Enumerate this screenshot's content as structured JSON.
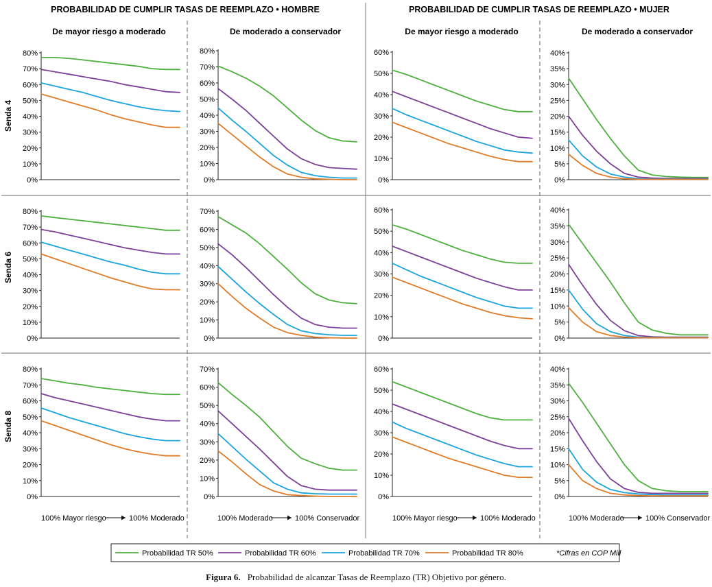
{
  "headers": {
    "hombre": "PROBABILIDAD DE CUMPLIR TASAS DE REEMPLAZO • HOMBRE",
    "mujer": "PROBABILIDAD DE CUMPLIR TASAS DE REEMPLAZO • MUJER"
  },
  "subheaders": {
    "mayor": "De mayor riesgo a moderado",
    "moderado": "De moderado a conservador"
  },
  "rows": [
    "Senda 4",
    "Senda 6",
    "Senda 8"
  ],
  "x_caps": {
    "mayor": {
      "left": "100% Mayor riesgo",
      "right": "100% Moderado"
    },
    "moderado": {
      "left": "100% Moderado",
      "right": "100% Conservador"
    }
  },
  "legend": {
    "items": [
      {
        "label": "Probabilidad TR 50%",
        "color": "#4daf3e"
      },
      {
        "label": "Probabilidad TR 60%",
        "color": "#7b3f98"
      },
      {
        "label": "Probabilidad TR 70%",
        "color": "#1aa3dc"
      },
      {
        "label": "Probabilidad TR 80%",
        "color": "#e07b27"
      }
    ],
    "note": "*Cifras en COP Mill"
  },
  "caption": {
    "label": "Figura 6.",
    "text": "Probabilidad de alcanzar Tasas de Reemplazo (TR) Objetivo por género."
  },
  "chart_data": [
    {
      "id": "h-s4-mayor",
      "type": "line",
      "ylim": [
        0,
        80
      ],
      "yticks": [
        0,
        10,
        20,
        30,
        40,
        50,
        60,
        70,
        80
      ],
      "x": [
        0,
        1,
        2,
        3,
        4,
        5,
        6,
        7,
        8,
        9,
        10
      ],
      "series": [
        {
          "name": "Probabilidad TR 50%",
          "values": [
            77,
            77,
            76.5,
            75.5,
            74.5,
            73.5,
            72.5,
            71.5,
            70,
            69.5,
            69.5
          ]
        },
        {
          "name": "Probabilidad TR 60%",
          "values": [
            69.5,
            68,
            66.5,
            65,
            63.5,
            62,
            60,
            58.5,
            57,
            55.5,
            55
          ]
        },
        {
          "name": "Probabilidad TR 70%",
          "values": [
            61,
            59,
            57,
            55,
            52.5,
            50,
            48,
            46,
            44.5,
            43.5,
            43
          ]
        },
        {
          "name": "Probabilidad TR 80%",
          "values": [
            54,
            51.5,
            49,
            46.5,
            44,
            41,
            38.5,
            36.5,
            34.5,
            33,
            33
          ]
        }
      ]
    },
    {
      "id": "h-s4-moderado",
      "type": "line",
      "ylim": [
        0,
        80
      ],
      "yticks": [
        0,
        10,
        20,
        30,
        40,
        50,
        60,
        70,
        80
      ],
      "x": [
        0,
        1,
        2,
        3,
        4,
        5,
        6,
        7,
        8,
        9,
        10
      ],
      "series": [
        {
          "name": "Probabilidad TR 50%",
          "values": [
            70.5,
            67,
            63,
            58,
            52,
            44.5,
            37,
            30.5,
            26,
            24,
            23.5
          ]
        },
        {
          "name": "Probabilidad TR 60%",
          "values": [
            56.5,
            50,
            43,
            35,
            27,
            19,
            13,
            9.5,
            7.5,
            7,
            6.5
          ]
        },
        {
          "name": "Probabilidad TR 70%",
          "values": [
            44.5,
            37,
            30,
            22.5,
            15,
            9,
            4.5,
            2.5,
            1.5,
            1,
            1
          ]
        },
        {
          "name": "Probabilidad TR 80%",
          "values": [
            35,
            28,
            21,
            14,
            8,
            3.5,
            1.5,
            0.5,
            0.2,
            0,
            0
          ]
        }
      ]
    },
    {
      "id": "m-s4-mayor",
      "type": "line",
      "ylim": [
        0,
        60
      ],
      "yticks": [
        0,
        10,
        20,
        30,
        40,
        50,
        60
      ],
      "x": [
        0,
        1,
        2,
        3,
        4,
        5,
        6,
        7,
        8,
        9,
        10
      ],
      "series": [
        {
          "name": "Probabilidad TR 50%",
          "values": [
            51.5,
            49.5,
            47,
            44.5,
            42,
            39.5,
            37,
            35,
            33,
            32,
            32
          ]
        },
        {
          "name": "Probabilidad TR 60%",
          "values": [
            41.5,
            39,
            36.5,
            34,
            31.5,
            29,
            26.5,
            24,
            22,
            20,
            19.5
          ]
        },
        {
          "name": "Probabilidad TR 70%",
          "values": [
            33.5,
            30.5,
            28,
            25.5,
            23,
            20.5,
            18,
            16,
            14,
            13,
            12.5
          ]
        },
        {
          "name": "Probabilidad TR 80%",
          "values": [
            27,
            24.5,
            22,
            19.5,
            17,
            15,
            13,
            11,
            9.5,
            8.5,
            8.5
          ]
        }
      ]
    },
    {
      "id": "m-s4-moderado",
      "type": "line",
      "ylim": [
        0,
        40
      ],
      "yticks": [
        0,
        5,
        10,
        15,
        20,
        25,
        30,
        35,
        40
      ],
      "x": [
        0,
        1,
        2,
        3,
        4,
        5,
        6,
        7,
        8,
        9,
        10
      ],
      "series": [
        {
          "name": "Probabilidad TR 50%",
          "values": [
            32,
            25.5,
            19,
            13,
            7.5,
            3,
            1.5,
            1,
            0.8,
            0.7,
            0.7
          ]
        },
        {
          "name": "Probabilidad TR 60%",
          "values": [
            20,
            14,
            9,
            5,
            2,
            0.8,
            0.5,
            0.4,
            0.4,
            0.4,
            0.4
          ]
        },
        {
          "name": "Probabilidad TR 70%",
          "values": [
            12.5,
            7.5,
            4,
            1.8,
            0.8,
            0.3,
            0.2,
            0.2,
            0.2,
            0.2,
            0.2
          ]
        },
        {
          "name": "Probabilidad TR 80%",
          "values": [
            8,
            4.5,
            2,
            0.8,
            0.3,
            0.1,
            0.1,
            0.1,
            0.1,
            0.1,
            0.1
          ]
        }
      ]
    },
    {
      "id": "h-s6-mayor",
      "type": "line",
      "ylim": [
        0,
        80
      ],
      "yticks": [
        0,
        10,
        20,
        30,
        40,
        50,
        60,
        70,
        80
      ],
      "x": [
        0,
        1,
        2,
        3,
        4,
        5,
        6,
        7,
        8,
        9,
        10
      ],
      "series": [
        {
          "name": "Probabilidad TR 50%",
          "values": [
            77,
            76,
            75,
            74,
            73,
            72,
            71,
            70,
            69,
            68,
            68
          ]
        },
        {
          "name": "Probabilidad TR 60%",
          "values": [
            68.5,
            67,
            65,
            63,
            61,
            59,
            57,
            55.5,
            54,
            53,
            53
          ]
        },
        {
          "name": "Probabilidad TR 70%",
          "values": [
            60.5,
            58,
            55.5,
            53,
            50.5,
            48,
            46,
            43.5,
            41.5,
            40.5,
            40.5
          ]
        },
        {
          "name": "Probabilidad TR 80%",
          "values": [
            53,
            50,
            47,
            44,
            41,
            38,
            35.5,
            33,
            31,
            30.5,
            30.5
          ]
        }
      ]
    },
    {
      "id": "h-s6-moderado",
      "type": "line",
      "ylim": [
        0,
        70
      ],
      "yticks": [
        0,
        10,
        20,
        30,
        40,
        50,
        60,
        70
      ],
      "x": [
        0,
        1,
        2,
        3,
        4,
        5,
        6,
        7,
        8,
        9,
        10
      ],
      "series": [
        {
          "name": "Probabilidad TR 50%",
          "values": [
            67,
            62.5,
            58,
            52,
            45,
            38,
            30.5,
            24.5,
            21,
            19.5,
            19
          ]
        },
        {
          "name": "Probabilidad TR 60%",
          "values": [
            52,
            46,
            39,
            31.5,
            24,
            17,
            11,
            7.5,
            6,
            5.5,
            5.5
          ]
        },
        {
          "name": "Probabilidad TR 70%",
          "values": [
            39.5,
            32.5,
            25.5,
            19,
            13,
            7.5,
            4,
            2.5,
            1.8,
            1.5,
            1.5
          ]
        },
        {
          "name": "Probabilidad TR 80%",
          "values": [
            30,
            23,
            16.5,
            11,
            6,
            3,
            1.5,
            0.5,
            0.2,
            0,
            0
          ]
        }
      ]
    },
    {
      "id": "m-s6-mayor",
      "type": "line",
      "ylim": [
        0,
        60
      ],
      "yticks": [
        0,
        10,
        20,
        30,
        40,
        50,
        60
      ],
      "x": [
        0,
        1,
        2,
        3,
        4,
        5,
        6,
        7,
        8,
        9,
        10
      ],
      "series": [
        {
          "name": "Probabilidad TR 50%",
          "values": [
            53,
            51,
            48.5,
            46,
            43.5,
            41,
            39,
            37,
            35.5,
            35,
            35
          ]
        },
        {
          "name": "Probabilidad TR 60%",
          "values": [
            43,
            40.5,
            38,
            35.5,
            33,
            30.5,
            28,
            26,
            24,
            22.5,
            22.5
          ]
        },
        {
          "name": "Probabilidad TR 70%",
          "values": [
            35,
            32,
            29,
            26.5,
            24,
            21.5,
            19,
            17,
            15,
            14,
            14
          ]
        },
        {
          "name": "Probabilidad TR 80%",
          "values": [
            28.5,
            26,
            23.5,
            21,
            18.5,
            16,
            14,
            12,
            10.5,
            9.5,
            9
          ]
        }
      ]
    },
    {
      "id": "m-s6-moderado",
      "type": "line",
      "ylim": [
        0,
        40
      ],
      "yticks": [
        0,
        5,
        10,
        15,
        20,
        25,
        30,
        35,
        40
      ],
      "x": [
        0,
        1,
        2,
        3,
        4,
        5,
        6,
        7,
        8,
        9,
        10
      ],
      "series": [
        {
          "name": "Probabilidad TR 50%",
          "values": [
            35.5,
            29.5,
            23.5,
            17.5,
            11,
            5,
            2.5,
            1.5,
            1,
            1,
            1
          ]
        },
        {
          "name": "Probabilidad TR 60%",
          "values": [
            23,
            16.5,
            10.5,
            5.5,
            2.3,
            0.8,
            0.4,
            0.3,
            0.3,
            0.3,
            0.3
          ]
        },
        {
          "name": "Probabilidad TR 70%",
          "values": [
            15,
            9,
            4.5,
            2,
            0.8,
            0.3,
            0.2,
            0.2,
            0.2,
            0.2,
            0.2
          ]
        },
        {
          "name": "Probabilidad TR 80%",
          "values": [
            9.5,
            5,
            2,
            0.8,
            0.3,
            0.1,
            0.1,
            0.1,
            0.1,
            0.1,
            0.1
          ]
        }
      ]
    },
    {
      "id": "h-s8-mayor",
      "type": "line",
      "ylim": [
        0,
        80
      ],
      "yticks": [
        0,
        10,
        20,
        30,
        40,
        50,
        60,
        70,
        80
      ],
      "x": [
        0,
        1,
        2,
        3,
        4,
        5,
        6,
        7,
        8,
        9,
        10
      ],
      "series": [
        {
          "name": "Probabilidad TR 50%",
          "values": [
            74,
            72.5,
            71,
            70,
            68.5,
            67.5,
            66.5,
            65.5,
            64.5,
            64,
            64
          ]
        },
        {
          "name": "Probabilidad TR 60%",
          "values": [
            64.5,
            62,
            60,
            58,
            56,
            54,
            52,
            50,
            48.5,
            47.5,
            47.5
          ]
        },
        {
          "name": "Probabilidad TR 70%",
          "values": [
            55.5,
            52.5,
            49.5,
            47,
            44.5,
            42,
            39.5,
            37.5,
            36,
            35,
            35
          ]
        },
        {
          "name": "Probabilidad TR 80%",
          "values": [
            47.5,
            44.5,
            41.5,
            38.5,
            35.5,
            32.5,
            30,
            28,
            26.5,
            25.5,
            25.5
          ]
        }
      ]
    },
    {
      "id": "h-s8-moderado",
      "type": "line",
      "ylim": [
        0,
        70
      ],
      "yticks": [
        0,
        10,
        20,
        30,
        40,
        50,
        60,
        70
      ],
      "x": [
        0,
        1,
        2,
        3,
        4,
        5,
        6,
        7,
        8,
        9,
        10
      ],
      "series": [
        {
          "name": "Probabilidad TR 50%",
          "values": [
            62.5,
            56,
            50,
            43.5,
            35.5,
            27.5,
            21,
            18,
            15.5,
            14.5,
            14.5
          ]
        },
        {
          "name": "Probabilidad TR 60%",
          "values": [
            47,
            40,
            33,
            26,
            18.5,
            11,
            6,
            4,
            3.5,
            3.5,
            3.5
          ]
        },
        {
          "name": "Probabilidad TR 70%",
          "values": [
            34.5,
            27.5,
            20.5,
            14,
            7.5,
            4,
            2,
            1.5,
            1.3,
            1.3,
            1.3
          ]
        },
        {
          "name": "Probabilidad TR 80%",
          "values": [
            25,
            19,
            12.5,
            6.5,
            3,
            1,
            0.5,
            0.2,
            0,
            0,
            0
          ]
        }
      ]
    },
    {
      "id": "m-s8-mayor",
      "type": "line",
      "ylim": [
        0,
        60
      ],
      "yticks": [
        0,
        10,
        20,
        30,
        40,
        50,
        60
      ],
      "x": [
        0,
        1,
        2,
        3,
        4,
        5,
        6,
        7,
        8,
        9,
        10
      ],
      "series": [
        {
          "name": "Probabilidad TR 50%",
          "values": [
            54,
            51.5,
            49,
            46.5,
            44,
            41.5,
            39,
            37,
            36,
            36,
            36
          ]
        },
        {
          "name": "Probabilidad TR 60%",
          "values": [
            43.5,
            41,
            38.5,
            36,
            33.5,
            31,
            28.5,
            26,
            24,
            22.5,
            22.5
          ]
        },
        {
          "name": "Probabilidad TR 70%",
          "values": [
            35,
            32,
            29.5,
            27,
            24.5,
            22,
            19.5,
            17.5,
            15.5,
            14,
            14
          ]
        },
        {
          "name": "Probabilidad TR 80%",
          "values": [
            28,
            25.5,
            23,
            20.5,
            18,
            16,
            14,
            12,
            10,
            9,
            9
          ]
        }
      ]
    },
    {
      "id": "m-s8-moderado",
      "type": "line",
      "ylim": [
        0,
        40
      ],
      "yticks": [
        0,
        5,
        10,
        15,
        20,
        25,
        30,
        35,
        40
      ],
      "x": [
        0,
        1,
        2,
        3,
        4,
        5,
        6,
        7,
        8,
        9,
        10
      ],
      "series": [
        {
          "name": "Probabilidad TR 50%",
          "values": [
            35.5,
            29.5,
            23,
            16.5,
            10,
            5,
            2.5,
            1.8,
            1.5,
            1.5,
            1.5
          ]
        },
        {
          "name": "Probabilidad TR 60%",
          "values": [
            24.5,
            17.5,
            11,
            5.5,
            2.5,
            1.3,
            1,
            1,
            1,
            1,
            1
          ]
        },
        {
          "name": "Probabilidad TR 70%",
          "values": [
            15,
            8.5,
            4.5,
            2.2,
            1.2,
            0.8,
            0.6,
            0.5,
            0.5,
            0.5,
            0.5
          ]
        },
        {
          "name": "Probabilidad TR 80%",
          "values": [
            10,
            5,
            2.5,
            1,
            0.5,
            0.3,
            0.2,
            0.2,
            0.2,
            0.2,
            0.2
          ]
        }
      ]
    }
  ]
}
